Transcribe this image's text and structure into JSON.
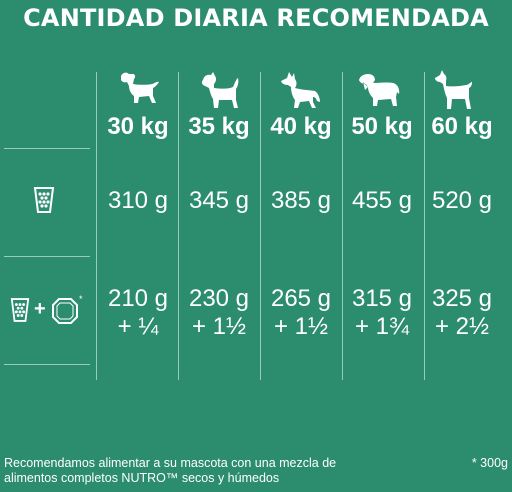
{
  "title": "CANTIDAD DIARIA RECOMENDADA",
  "columns": [
    {
      "weight": "30 kg",
      "dog_icon": "small-dog-icon"
    },
    {
      "weight": "35 kg",
      "dog_icon": "terrier-dog-icon"
    },
    {
      "weight": "40 kg",
      "dog_icon": "shepherd-dog-icon"
    },
    {
      "weight": "50 kg",
      "dog_icon": "retriever-dog-icon"
    },
    {
      "weight": "60 kg",
      "dog_icon": "great-dane-dog-icon"
    }
  ],
  "rows": [
    {
      "icon": "kibble-cup-icon",
      "values": [
        {
          "line1": "310 g"
        },
        {
          "line1": "345 g"
        },
        {
          "line1": "385 g"
        },
        {
          "line1": "455 g"
        },
        {
          "line1": "520 g"
        }
      ]
    },
    {
      "icon": "kibble-cup-plus-wet-food-tray-icon",
      "plus_sign": "+",
      "tray_asterisk": "*",
      "values": [
        {
          "line1": "210 g",
          "line2": "+ ¼"
        },
        {
          "line1": "230 g",
          "line2": "+ 1½"
        },
        {
          "line1": "265 g",
          "line2": "+ 1½"
        },
        {
          "line1": "315 g",
          "line2": "+ 1¾"
        },
        {
          "line1": "325 g",
          "line2": "+ 2½"
        }
      ]
    }
  ],
  "footnote": {
    "line1": "Recomendamos alimentar a su mascota con una mezcla de",
    "line2": "alimentos completos NUTRO™ secos y húmedos",
    "tray_weight": "* 300g"
  },
  "colors": {
    "background": "#2b8c6e",
    "text": "#ffffff"
  }
}
